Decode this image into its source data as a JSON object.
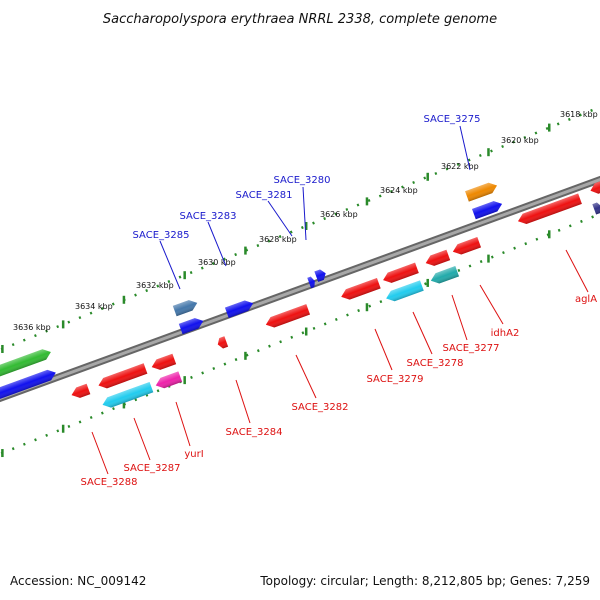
{
  "title": "Saccharopolyspora erythraea NRRL 2338, complete genome",
  "footer": {
    "accession": "Accession: NC_009142",
    "summary": "Topology: circular; Length: 8,212,805 bp; Genes: 7,259"
  },
  "map": {
    "kbp_range": [
      3618,
      3636
    ],
    "tick_labels": [
      "3618 kbp",
      "3620 kbp",
      "3622 kbp",
      "3624 kbp",
      "3626 kbp",
      "3628 kbp",
      "3630 kbp",
      "3632 kbp",
      "3634 kbp",
      "3636 kbp"
    ],
    "colors": {
      "backbone": "#888888",
      "ticks": "#2a8a2a",
      "forward_label": "#1a1acc",
      "reverse_label": "#dd1111",
      "red": "#ee1111",
      "blue": "#1111ee",
      "green": "#33bb33",
      "cyan": "#22ccee",
      "teal": "#22aaaa",
      "orange": "#ee8800",
      "magenta": "#ee22aa",
      "steel": "#4477aa",
      "navy": "#333388"
    }
  },
  "labels": {
    "forward": [
      "SACE_3275",
      "SACE_3280",
      "SACE_3281",
      "SACE_3283",
      "SACE_3285"
    ],
    "reverse": [
      "aglA",
      "idhA2",
      "SACE_3277",
      "SACE_3278",
      "SACE_3279",
      "SACE_3282",
      "SACE_3284",
      "yurI",
      "SACE_3287",
      "SACE_3288"
    ]
  }
}
